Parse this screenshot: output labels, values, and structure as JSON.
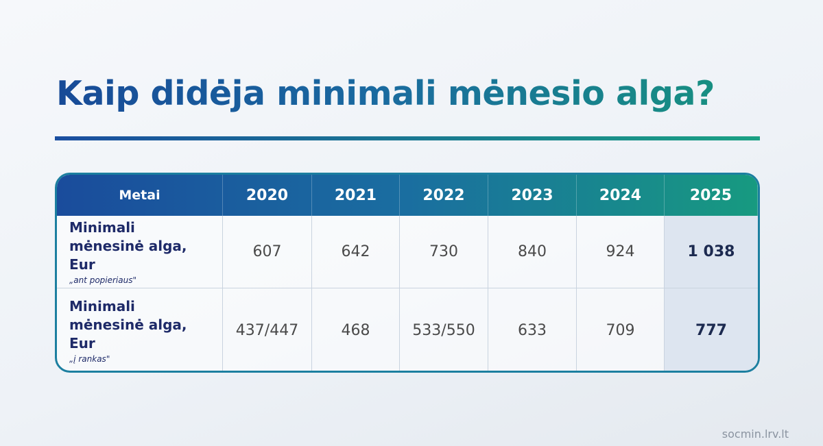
{
  "header": {
    "title": "Kaip didėja minimali mėnesio alga?"
  },
  "table": {
    "columns": [
      "Metai",
      "2020",
      "2021",
      "2022",
      "2023",
      "2024",
      "2025"
    ],
    "rows": [
      {
        "label": "Minimali mėnesinė alga, Eur",
        "note": "„ant popieriaus\"",
        "cells": [
          "607",
          "642",
          "730",
          "840",
          "924",
          "1 038"
        ]
      },
      {
        "label": "Minimali mėnesinė alga, Eur",
        "note": "„į rankas\"",
        "cells": [
          "437/447",
          "468",
          "533/550",
          "633",
          "709",
          "777"
        ]
      }
    ]
  },
  "footer": {
    "source": "socmin.lrv.lt"
  }
}
